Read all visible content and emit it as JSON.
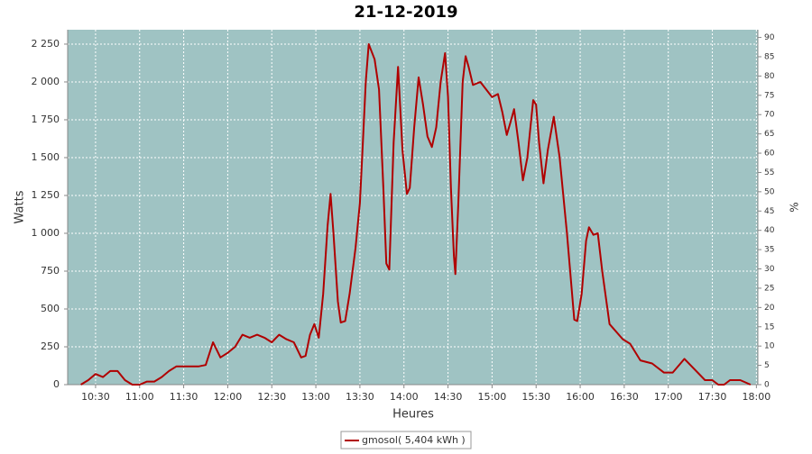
{
  "chart_data": {
    "type": "line",
    "title": "21-12-2019",
    "y_label": "Watts",
    "y2_label": "%",
    "x_label": "Heures",
    "x": [
      "10:20",
      "10:25",
      "10:30",
      "10:35",
      "10:40",
      "10:45",
      "10:50",
      "10:55",
      "11:00",
      "11:05",
      "11:10",
      "11:15",
      "11:20",
      "11:25",
      "11:30",
      "11:35",
      "11:40",
      "11:45",
      "11:50",
      "11:55",
      "12:00",
      "12:05",
      "12:10",
      "12:15",
      "12:20",
      "12:25",
      "12:30",
      "12:35",
      "12:40",
      "12:45",
      "12:50",
      "12:53",
      "12:56",
      "12:59",
      "13:02",
      "13:05",
      "13:08",
      "13:10",
      "13:12",
      "13:15",
      "13:17",
      "13:20",
      "13:23",
      "13:27",
      "13:30",
      "13:32",
      "13:34",
      "13:36",
      "13:40",
      "13:43",
      "13:46",
      "13:48",
      "13:50",
      "13:53",
      "13:56",
      "13:59",
      "14:02",
      "14:04",
      "14:07",
      "14:10",
      "14:13",
      "14:16",
      "14:19",
      "14:22",
      "14:25",
      "14:28",
      "14:30",
      "14:32",
      "14:34",
      "14:35",
      "14:37",
      "14:40",
      "14:42",
      "14:44",
      "14:47",
      "14:52",
      "14:56",
      "15:00",
      "15:04",
      "15:07",
      "15:10",
      "15:13",
      "15:15",
      "15:18",
      "15:21",
      "15:24",
      "15:28",
      "15:30",
      "15:32",
      "15:35",
      "15:38",
      "15:42",
      "15:46",
      "15:51",
      "15:56",
      "15:58",
      "16:01",
      "16:04",
      "16:06",
      "16:09",
      "16:12",
      "16:15",
      "16:20",
      "16:29",
      "16:34",
      "16:41",
      "16:49",
      "16:57",
      "17:03",
      "17:11",
      "17:18",
      "17:25",
      "17:30",
      "17:34",
      "17:38",
      "17:42",
      "17:49",
      "17:56"
    ],
    "series": [
      {
        "name": "gmosol( 5,404 kWh )",
        "color": "#b00000",
        "values": [
          0,
          30,
          70,
          50,
          90,
          90,
          30,
          0,
          0,
          20,
          20,
          50,
          90,
          120,
          120,
          120,
          120,
          130,
          280,
          180,
          210,
          250,
          330,
          310,
          330,
          310,
          280,
          330,
          300,
          280,
          180,
          190,
          330,
          400,
          310,
          600,
          1050,
          1260,
          1000,
          550,
          410,
          420,
          600,
          900,
          1200,
          1600,
          2000,
          2250,
          2150,
          1950,
          1300,
          800,
          760,
          1600,
          2100,
          1550,
          1260,
          1300,
          1700,
          2030,
          1850,
          1640,
          1570,
          1700,
          2000,
          2190,
          1900,
          1300,
          850,
          730,
          1200,
          2000,
          2170,
          2100,
          1980,
          2000,
          1950,
          1900,
          1920,
          1800,
          1650,
          1750,
          1820,
          1600,
          1350,
          1500,
          1880,
          1850,
          1600,
          1330,
          1550,
          1770,
          1500,
          1000,
          430,
          420,
          600,
          950,
          1040,
          990,
          1000,
          750,
          400,
          300,
          270,
          160,
          140,
          80,
          80,
          170,
          100,
          30,
          30,
          0,
          0,
          30,
          30,
          0
        ]
      }
    ],
    "xlim": [
      "10:11",
      "18:01"
    ],
    "xticks": [
      "10:30",
      "11:00",
      "11:30",
      "12:00",
      "12:30",
      "13:00",
      "13:30",
      "14:00",
      "14:30",
      "15:00",
      "15:30",
      "16:00",
      "16:30",
      "17:00",
      "17:30",
      "18:00"
    ],
    "ylim": [
      0,
      2345
    ],
    "yticks": [
      0,
      250,
      500,
      750,
      {
        "value": 1000,
        "label": "1 000"
      },
      {
        "value": 1250,
        "label": "1 250"
      },
      {
        "value": 1500,
        "label": "1 500"
      },
      {
        "value": 1750,
        "label": "1 750"
      },
      {
        "value": 2000,
        "label": "2 000"
      },
      {
        "value": 2250,
        "label": "2 250"
      }
    ],
    "y2lim": [
      0,
      92
    ],
    "y2ticks": [
      0,
      5,
      10,
      15,
      20,
      25,
      30,
      35,
      40,
      45,
      50,
      55,
      60,
      65,
      70,
      75,
      80,
      85,
      90
    ],
    "grid": true,
    "plot_background": "#9fc3c3",
    "legend": "bottom"
  }
}
